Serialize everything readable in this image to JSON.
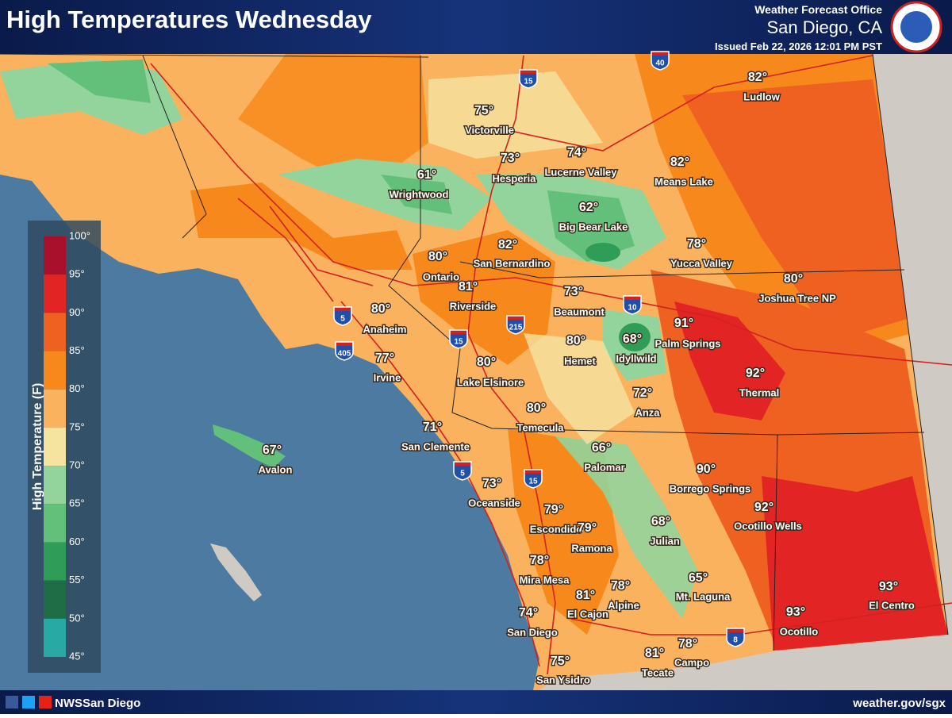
{
  "header": {
    "title": "High Temperatures Wednesday",
    "office": "Weather Forecast Office",
    "location": "San Diego, CA",
    "issued": "Issued Feb 22, 2026 12:01 PM PST"
  },
  "legend": {
    "title": "High Temperature (F)",
    "labels": [
      "100°",
      "95°",
      "90°",
      "85°",
      "80°",
      "75°",
      "70°",
      "65°",
      "60°",
      "55°",
      "50°",
      "45°"
    ],
    "colors": [
      "#a8102c",
      "#e32424",
      "#ef6121",
      "#f7891c",
      "#fbb25e",
      "#f5e3a0",
      "#92d49c",
      "#62c07a",
      "#2f9d57",
      "#1e6d46",
      "#28a9a4"
    ]
  },
  "cities": [
    {
      "name": "Victorville",
      "temp": "75°"
    },
    {
      "name": "Hesperia",
      "temp": "73°"
    },
    {
      "name": "Lucerne Valley",
      "temp": "74°"
    },
    {
      "name": "Ludlow",
      "temp": "82°"
    },
    {
      "name": "Means Lake",
      "temp": "82°"
    },
    {
      "name": "Wrightwood",
      "temp": "61°"
    },
    {
      "name": "Big Bear Lake",
      "temp": "62°"
    },
    {
      "name": "San Bernardino",
      "temp": "82°"
    },
    {
      "name": "Ontario",
      "temp": "80°"
    },
    {
      "name": "Yucca Valley",
      "temp": "78°"
    },
    {
      "name": "Joshua Tree NP",
      "temp": "80°"
    },
    {
      "name": "Riverside",
      "temp": "81°"
    },
    {
      "name": "Beaumont",
      "temp": "73°"
    },
    {
      "name": "Anaheim",
      "temp": "80°"
    },
    {
      "name": "Palm Springs",
      "temp": "91°"
    },
    {
      "name": "Idyllwild",
      "temp": "68°"
    },
    {
      "name": "Hemet",
      "temp": "80°"
    },
    {
      "name": "Irvine",
      "temp": "77°"
    },
    {
      "name": "Lake Elsinore",
      "temp": "80°"
    },
    {
      "name": "Thermal",
      "temp": "92°"
    },
    {
      "name": "Anza",
      "temp": "72°"
    },
    {
      "name": "Temecula",
      "temp": "80°"
    },
    {
      "name": "San Clemente",
      "temp": "71°"
    },
    {
      "name": "Avalon",
      "temp": "67°"
    },
    {
      "name": "Palomar",
      "temp": "66°"
    },
    {
      "name": "Borrego Springs",
      "temp": "90°"
    },
    {
      "name": "Oceanside",
      "temp": "73°"
    },
    {
      "name": "Ocotillo Wells",
      "temp": "92°"
    },
    {
      "name": "Escondido",
      "temp": "79°"
    },
    {
      "name": "Ramona",
      "temp": "79°"
    },
    {
      "name": "Julian",
      "temp": "68°"
    },
    {
      "name": "Mira Mesa",
      "temp": "78°"
    },
    {
      "name": "Mt. Laguna",
      "temp": "65°"
    },
    {
      "name": "El Cajon",
      "temp": "81°"
    },
    {
      "name": "Alpine",
      "temp": "78°"
    },
    {
      "name": "El Centro",
      "temp": "93°"
    },
    {
      "name": "San Diego",
      "temp": "74°"
    },
    {
      "name": "Ocotillo",
      "temp": "93°"
    },
    {
      "name": "San Ysidro",
      "temp": "75°"
    },
    {
      "name": "Tecate",
      "temp": "81°"
    },
    {
      "name": "Campo",
      "temp": "78°"
    }
  ],
  "highways": [
    "40",
    "15",
    "10",
    "5",
    "405",
    "215",
    "15",
    "5",
    "15",
    "8"
  ],
  "footer": {
    "social": "NWSSan Diego",
    "url": "weather.gov/sgx"
  }
}
